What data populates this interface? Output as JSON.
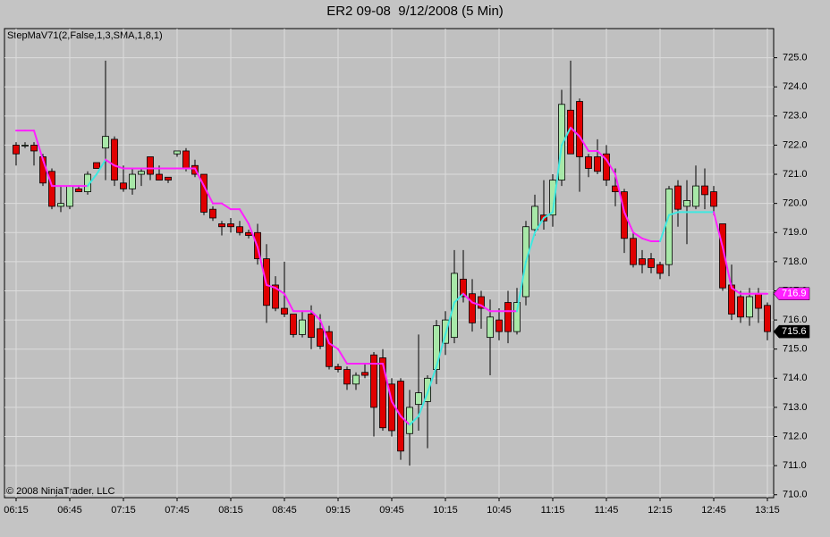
{
  "chart_data": {
    "type": "candlestick",
    "title": "ER2 09-08  9/12/2008 (5 Min)",
    "copyright": "© 2008 NinjaTrader, LLC",
    "categories": [
      "06:15",
      null,
      null,
      null,
      null,
      null,
      "06:45",
      null,
      null,
      null,
      null,
      null,
      "07:15",
      null,
      null,
      null,
      null,
      null,
      "07:45",
      null,
      null,
      null,
      null,
      null,
      "08:15",
      null,
      null,
      null,
      null,
      null,
      "08:45",
      null,
      null,
      null,
      null,
      null,
      "09:15",
      null,
      null,
      null,
      null,
      null,
      "09:45",
      null,
      null,
      null,
      null,
      null,
      "10:15",
      null,
      null,
      null,
      null,
      null,
      "10:45",
      null,
      null,
      null,
      null,
      null,
      "11:15",
      null,
      null,
      null,
      null,
      null,
      "11:45",
      null,
      null,
      null,
      null,
      null,
      "12:15",
      null,
      null,
      null,
      null,
      null,
      "12:45",
      null,
      null,
      null,
      null,
      null,
      "13:15"
    ],
    "open": [
      722.0,
      722.0,
      722.0,
      721.6,
      721.1,
      719.9,
      719.9,
      720.5,
      720.4,
      721.4,
      721.9,
      722.2,
      720.7,
      720.5,
      721.0,
      721.6,
      721.0,
      720.9,
      721.7,
      721.8,
      721.3,
      721.0,
      719.8,
      719.3,
      719.3,
      719.2,
      719.0,
      719.0,
      718.1,
      717.2,
      716.4,
      716.2,
      715.5,
      716.2,
      715.7,
      715.6,
      714.4,
      714.3,
      713.8,
      714.2,
      714.8,
      714.7,
      713.8,
      713.9,
      712.1,
      713.1,
      713.2,
      714.3,
      715.2,
      715.4,
      717.4,
      716.9,
      716.8,
      715.4,
      716.0,
      716.6,
      715.6,
      716.8,
      719.1,
      719.6,
      719.6,
      720.8,
      723.2,
      723.5,
      721.6,
      721.6,
      721.7,
      720.6,
      720.4,
      718.8,
      718.1,
      718.1,
      717.9,
      717.9,
      720.6,
      719.9,
      719.9,
      720.6,
      720.4,
      719.3,
      717.2,
      716.8,
      716.1,
      716.9,
      716.5
    ],
    "high": [
      722.1,
      722.1,
      722.1,
      721.7,
      721.2,
      720.6,
      720.6,
      720.6,
      721.1,
      721.4,
      724.9,
      722.3,
      721.3,
      721.2,
      721.2,
      721.6,
      721.3,
      720.9,
      721.8,
      721.9,
      721.5,
      721.0,
      719.9,
      719.4,
      719.5,
      719.4,
      719.1,
      719.3,
      718.6,
      717.5,
      718.0,
      716.2,
      716.3,
      716.5,
      716.2,
      715.8,
      714.5,
      714.4,
      714.2,
      714.5,
      714.9,
      715.0,
      714.0,
      714.0,
      713.6,
      715.5,
      714.1,
      716.0,
      716.3,
      718.4,
      718.4,
      717.4,
      717.0,
      716.7,
      716.4,
      717.0,
      717.1,
      719.4,
      720.3,
      720.8,
      721.0,
      723.9,
      724.9,
      723.6,
      721.7,
      722.2,
      722.0,
      721.2,
      720.5,
      719.0,
      718.4,
      718.3,
      718.0,
      720.6,
      720.8,
      720.8,
      721.3,
      721.2,
      720.6,
      719.3,
      717.9,
      717.0,
      717.1,
      717.1,
      716.6
    ],
    "low": [
      721.3,
      721.9,
      721.3,
      720.6,
      719.8,
      719.7,
      719.8,
      720.4,
      720.3,
      721.2,
      720.8,
      720.6,
      720.4,
      720.3,
      720.6,
      720.8,
      720.8,
      720.7,
      721.6,
      721.1,
      720.9,
      719.6,
      719.4,
      718.9,
      719.0,
      718.9,
      718.8,
      717.9,
      715.9,
      716.3,
      716.1,
      715.4,
      715.4,
      715.0,
      715.0,
      714.3,
      714.2,
      713.6,
      713.6,
      714.0,
      712.0,
      712.2,
      712.0,
      711.2,
      711.0,
      712.2,
      711.6,
      713.8,
      714.8,
      715.2,
      716.6,
      715.6,
      715.7,
      714.1,
      715.3,
      715.2,
      715.5,
      716.5,
      718.9,
      719.1,
      719.2,
      720.6,
      721.7,
      720.4,
      720.9,
      721.0,
      720.6,
      719.9,
      718.3,
      717.8,
      717.6,
      717.6,
      717.4,
      717.5,
      719.2,
      718.6,
      719.8,
      719.8,
      719.6,
      717.0,
      716.0,
      715.9,
      715.8,
      715.9,
      715.3
    ],
    "close": [
      721.7,
      722.0,
      721.8,
      720.7,
      719.9,
      720.0,
      720.6,
      720.4,
      721.0,
      721.2,
      722.3,
      720.8,
      720.5,
      721.0,
      721.1,
      721.0,
      720.8,
      720.8,
      721.8,
      721.2,
      721.0,
      719.7,
      719.5,
      719.2,
      719.2,
      719.0,
      718.9,
      718.1,
      716.5,
      716.4,
      716.2,
      715.5,
      716.0,
      715.4,
      715.1,
      714.4,
      714.3,
      713.8,
      714.1,
      714.1,
      713.0,
      712.3,
      712.2,
      711.5,
      713.0,
      713.5,
      714.0,
      715.8,
      716.0,
      717.6,
      716.8,
      715.9,
      716.4,
      716.1,
      715.6,
      715.6,
      716.6,
      719.2,
      719.9,
      719.4,
      720.8,
      723.4,
      721.7,
      721.6,
      721.2,
      721.1,
      720.8,
      720.4,
      718.8,
      717.9,
      717.9,
      717.8,
      717.6,
      720.5,
      719.8,
      720.1,
      720.6,
      720.3,
      719.9,
      717.1,
      716.2,
      716.1,
      716.8,
      716.4,
      715.6
    ],
    "up_color": "#a8e8a8",
    "down_color": "#e00000",
    "indicator": {
      "name": "StepMaV71(2,False,1,3,SMA,1,8,1)",
      "rising_color": "#40e8e0",
      "falling_color": "#ff20ff",
      "values": [
        722.5,
        722.5,
        722.5,
        721.5,
        720.6,
        720.6,
        720.6,
        720.6,
        720.6,
        721.0,
        721.5,
        721.3,
        721.2,
        721.2,
        721.2,
        721.2,
        721.2,
        721.2,
        721.2,
        721.2,
        721.2,
        720.6,
        720.0,
        720.0,
        719.8,
        719.8,
        719.3,
        718.5,
        717.2,
        717.1,
        716.9,
        716.3,
        716.3,
        716.3,
        716.0,
        715.2,
        715.0,
        714.5,
        714.5,
        714.5,
        714.5,
        714.5,
        713.2,
        712.7,
        712.4,
        712.7,
        713.5,
        714.4,
        715.5,
        716.6,
        716.9,
        716.6,
        716.5,
        716.3,
        716.3,
        716.3,
        716.3,
        718.0,
        719.0,
        719.5,
        719.7,
        722.0,
        722.6,
        722.3,
        721.8,
        721.8,
        721.5,
        721.0,
        719.7,
        719.0,
        718.8,
        718.7,
        718.7,
        719.6,
        719.7,
        719.7,
        719.7,
        719.7,
        719.7,
        718.5,
        717.1,
        716.9,
        716.9,
        716.9,
        716.9
      ]
    },
    "ylim": [
      709.9,
      726.0
    ],
    "yticks": [
      {
        "value": 710,
        "label": "710.0"
      },
      {
        "value": 711,
        "label": "711.0"
      },
      {
        "value": 712,
        "label": "712.0"
      },
      {
        "value": 713,
        "label": "713.0"
      },
      {
        "value": 714,
        "label": "714.0"
      },
      {
        "value": 715,
        "label": "715.0"
      },
      {
        "value": 716,
        "label": "716.0"
      },
      {
        "value": 717,
        "label": "717.0"
      },
      {
        "value": 718,
        "label": "718.0"
      },
      {
        "value": 719,
        "label": "719.0"
      },
      {
        "value": 720,
        "label": "720.0"
      },
      {
        "value": 721,
        "label": "721.0"
      },
      {
        "value": 722,
        "label": "722.0"
      },
      {
        "value": 723,
        "label": "723.0"
      },
      {
        "value": 724,
        "label": "724.0"
      },
      {
        "value": 725,
        "label": "725.0"
      }
    ],
    "grid": true
  }
}
